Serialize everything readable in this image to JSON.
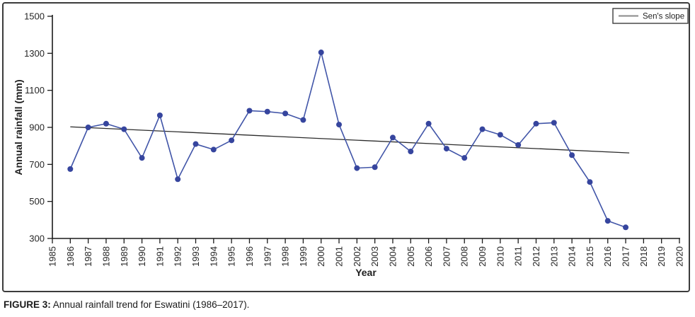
{
  "figure": {
    "caption_label": "FIGURE 3:",
    "caption_text": " Annual rainfall trend for Eswatini (1986–2017)."
  },
  "colors": {
    "series_line": "#4155a8",
    "series_marker": "#36459e",
    "trend_line": "#2b2b2b",
    "axis": "#1a1a1a",
    "text": "#262626"
  },
  "chart_data": {
    "type": "line",
    "title": "",
    "xlabel": "Year",
    "ylabel": "Annual rainfall (mm)",
    "xlim": [
      1985,
      2020
    ],
    "ylim": [
      300,
      1500
    ],
    "grid": false,
    "x_ticks": [
      1985,
      1986,
      1987,
      1988,
      1989,
      1990,
      1991,
      1992,
      1993,
      1994,
      1995,
      1996,
      1997,
      1998,
      1999,
      2000,
      2001,
      2002,
      2003,
      2004,
      2005,
      2006,
      2007,
      2008,
      2009,
      2010,
      2011,
      2012,
      2013,
      2014,
      2015,
      2016,
      2017,
      2018,
      2019,
      2020
    ],
    "y_ticks": [
      300,
      500,
      700,
      900,
      1100,
      1300,
      1500
    ],
    "legend": {
      "position": "top-right",
      "label": "Sen's slope"
    },
    "series": [
      {
        "name": "Annual rainfall",
        "marker": "circle",
        "x": [
          1986,
          1987,
          1988,
          1989,
          1990,
          1991,
          1992,
          1993,
          1994,
          1995,
          1996,
          1997,
          1998,
          1999,
          2000,
          2001,
          2002,
          2003,
          2004,
          2005,
          2006,
          2007,
          2008,
          2009,
          2010,
          2011,
          2012,
          2013,
          2014,
          2015,
          2016,
          2017
        ],
        "values": [
          675,
          900,
          920,
          890,
          735,
          965,
          620,
          810,
          780,
          830,
          990,
          985,
          975,
          940,
          1305,
          915,
          680,
          685,
          845,
          770,
          920,
          785,
          735,
          890,
          860,
          805,
          920,
          925,
          750,
          605,
          395,
          360
        ]
      }
    ],
    "trend_line": {
      "name": "Sen's slope",
      "x": [
        1986,
        2017.2
      ],
      "values": [
        903,
        762
      ]
    }
  }
}
